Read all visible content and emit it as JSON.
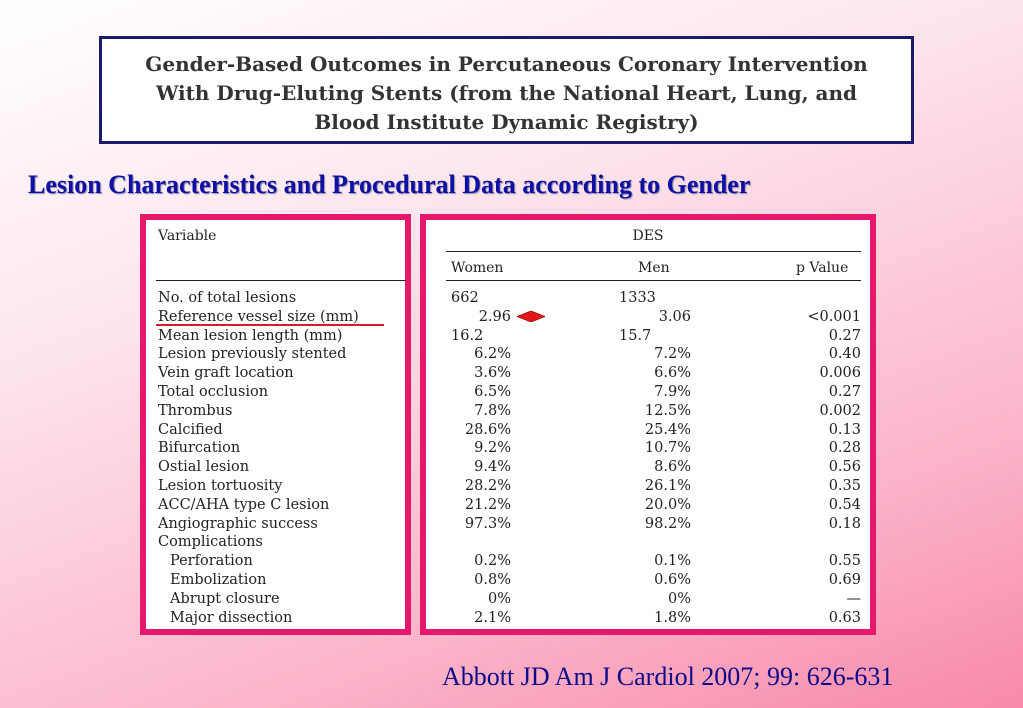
{
  "header": {
    "title_lines": [
      "Gender-Based Outcomes in Percutaneous Coronary Intervention",
      "With Drug-Eluting Stents (from the National Heart, Lung, and",
      "Blood Institute Dynamic Registry)"
    ]
  },
  "subtitle": "Lesion Characteristics and Procedural Data according to Gender",
  "table": {
    "variable_header": "Variable",
    "group_header": "DES",
    "col_women": "Women",
    "col_men": "Men",
    "col_p": "p Value",
    "rows": [
      {
        "variable": "No. of total lesions",
        "women": "662",
        "men": "1333",
        "p": ""
      },
      {
        "variable": "Reference vessel size (mm)",
        "women": "2.96",
        "men": "3.06",
        "p": "<0.001"
      },
      {
        "variable": "Mean lesion length (mm)",
        "women": "16.2",
        "men": "15.7",
        "p": "0.27"
      },
      {
        "variable": "Lesion previously stented",
        "women": "6.2%",
        "men": "7.2%",
        "p": "0.40"
      },
      {
        "variable": "Vein graft location",
        "women": "3.6%",
        "men": "6.6%",
        "p": "0.006"
      },
      {
        "variable": "Total occlusion",
        "women": "6.5%",
        "men": "7.9%",
        "p": "0.27"
      },
      {
        "variable": "Thrombus",
        "women": "7.8%",
        "men": "12.5%",
        "p": "0.002"
      },
      {
        "variable": "Calcified",
        "women": "28.6%",
        "men": "25.4%",
        "p": "0.13"
      },
      {
        "variable": "Bifurcation",
        "women": "9.2%",
        "men": "10.7%",
        "p": "0.28"
      },
      {
        "variable": "Ostial lesion",
        "women": "9.4%",
        "men": "8.6%",
        "p": "0.56"
      },
      {
        "variable": "Lesion tortuosity",
        "women": "28.2%",
        "men": "26.1%",
        "p": "0.35"
      },
      {
        "variable": "ACC/AHA type C lesion",
        "women": "21.2%",
        "men": "20.0%",
        "p": "0.54"
      },
      {
        "variable": "Angiographic success",
        "women": "97.3%",
        "men": "98.2%",
        "p": "0.18"
      },
      {
        "variable": "Complications",
        "women": "",
        "men": "",
        "p": ""
      },
      {
        "variable": "Perforation",
        "women": "0.2%",
        "men": "0.1%",
        "p": "0.55"
      },
      {
        "variable": "Embolization",
        "women": "0.8%",
        "men": "0.6%",
        "p": "0.69"
      },
      {
        "variable": "Abrupt closure",
        "women": "0%",
        "men": "0%",
        "p": "—"
      },
      {
        "variable": "Major dissection",
        "women": "2.1%",
        "men": "1.8%",
        "p": "0.63"
      }
    ]
  },
  "citation": "Abbott JD Am J Cardiol 2007; 99: 626-631",
  "colors": {
    "accent_border": "#e6186c",
    "title_border": "#1a1a6e",
    "subtitle_text": "#1010a0",
    "highlight": "#d0202a"
  }
}
